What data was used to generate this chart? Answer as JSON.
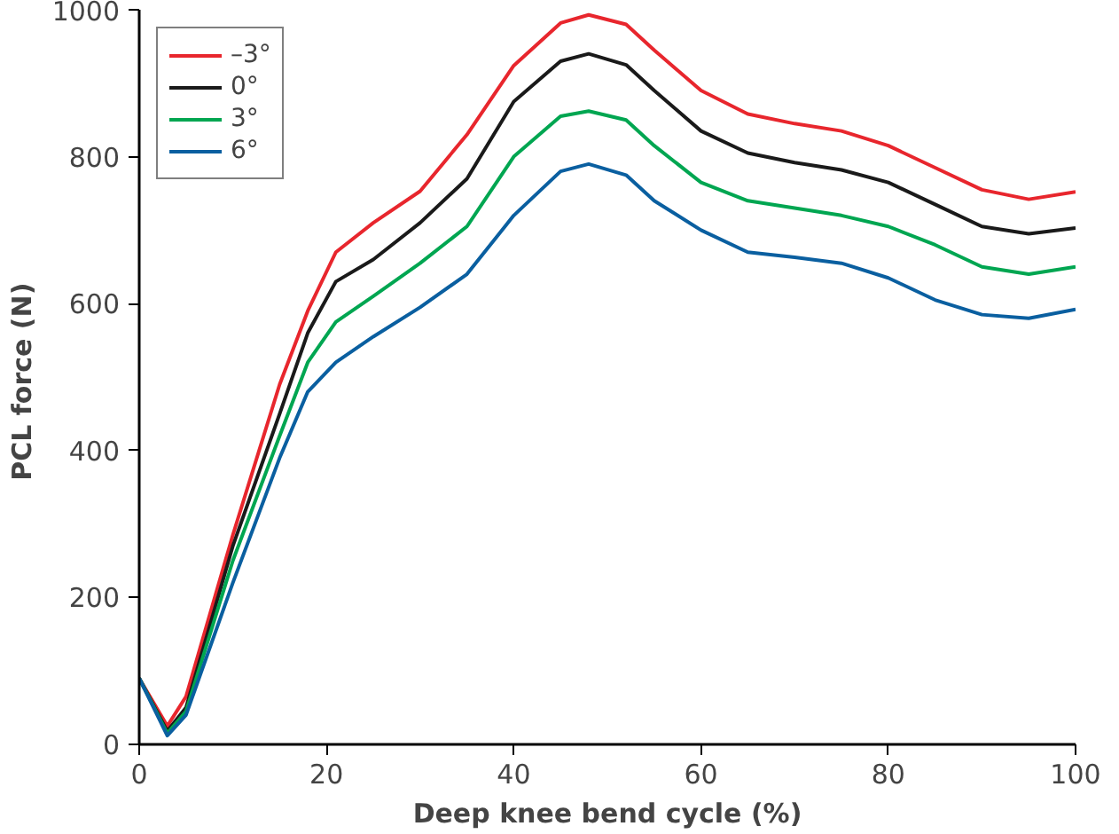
{
  "chart_data": {
    "type": "line",
    "xlabel": "Deep knee bend cycle (%)",
    "ylabel": "PCL force  (N)",
    "x": [
      0,
      3,
      5,
      10,
      15,
      18,
      21,
      25,
      30,
      35,
      40,
      45,
      48,
      52,
      55,
      60,
      65,
      70,
      75,
      80,
      85,
      90,
      95,
      100
    ],
    "series": [
      {
        "name": "–3°",
        "color": "#e8262d",
        "values": [
          90,
          25,
          65,
          285,
          490,
          590,
          670,
          710,
          753,
          830,
          924,
          982,
          993,
          980,
          945,
          890,
          858,
          845,
          835,
          815,
          785,
          755,
          742,
          752
        ]
      },
      {
        "name": "0°",
        "color": "#1a1a1a",
        "values": [
          90,
          18,
          50,
          270,
          450,
          560,
          630,
          660,
          710,
          770,
          875,
          930,
          940,
          925,
          890,
          835,
          805,
          792,
          782,
          765,
          735,
          705,
          695,
          703
        ]
      },
      {
        "name": "3°",
        "color": "#00a651",
        "values": [
          90,
          15,
          45,
          250,
          420,
          520,
          575,
          610,
          655,
          705,
          800,
          855,
          862,
          850,
          815,
          765,
          740,
          730,
          720,
          705,
          680,
          650,
          640,
          650
        ]
      },
      {
        "name": "6°",
        "color": "#0a5fa0",
        "values": [
          90,
          12,
          40,
          220,
          390,
          480,
          520,
          555,
          595,
          640,
          720,
          780,
          790,
          775,
          740,
          700,
          670,
          663,
          655,
          635,
          605,
          585,
          580,
          592
        ]
      }
    ],
    "xlim": [
      0,
      100
    ],
    "ylim": [
      0,
      1000
    ],
    "xticks": [
      0,
      20,
      40,
      60,
      80,
      100
    ],
    "yticks": [
      0,
      200,
      400,
      600,
      800,
      1000
    ],
    "grid": false,
    "legend": "top left",
    "marker": "none",
    "line_style": "solid"
  }
}
